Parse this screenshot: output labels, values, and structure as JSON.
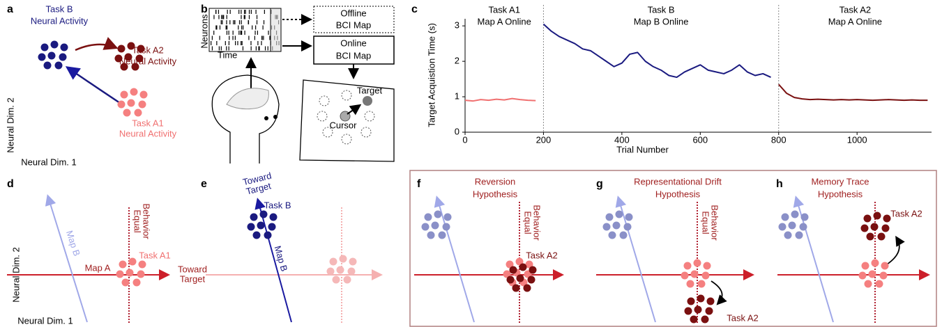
{
  "chart_data": {
    "type": "line",
    "phases": [
      {
        "title": "Task A1",
        "subtitle": "Map A Online"
      },
      {
        "title": "Task B",
        "subtitle": "Map B Online"
      },
      {
        "title": "Task A2",
        "subtitle": "Map A Online"
      }
    ],
    "dividers": [
      200,
      800
    ],
    "ylabel": "Target Acquistion Time (s)",
    "xlabel": "Trial Number",
    "xlim": [
      0,
      1190
    ],
    "xticks": [
      0,
      200,
      400,
      600,
      800,
      1000
    ],
    "ylim": [
      0,
      3.2
    ],
    "yticks": [
      0,
      1,
      2,
      3
    ],
    "x": [
      0,
      20,
      40,
      60,
      80,
      100,
      120,
      140,
      160,
      180,
      200,
      220,
      240,
      260,
      280,
      300,
      320,
      340,
      360,
      380,
      400,
      420,
      440,
      460,
      480,
      500,
      520,
      540,
      560,
      580,
      600,
      620,
      640,
      660,
      680,
      700,
      720,
      740,
      760,
      780,
      800,
      820,
      840,
      860,
      880,
      900,
      920,
      940,
      960,
      980,
      1000,
      1020,
      1040,
      1060,
      1080,
      1100,
      1120,
      1140,
      1160,
      1180
    ],
    "series": [
      {
        "color": "#f07070",
        "values": [
          0.9,
          0.88,
          0.92,
          0.9,
          0.93,
          0.91,
          0.95,
          0.92,
          0.9,
          0.89,
          null,
          null,
          null,
          null,
          null,
          null,
          null,
          null,
          null,
          null,
          null,
          null,
          null,
          null,
          null,
          null,
          null,
          null,
          null,
          null,
          null,
          null,
          null,
          null,
          null,
          null,
          null,
          null,
          null,
          null,
          null,
          null,
          null,
          null,
          null,
          null,
          null,
          null,
          null,
          null,
          null,
          null,
          null,
          null,
          null,
          null,
          null,
          null,
          null,
          null
        ]
      },
      {
        "color": "#1a1a80",
        "values": [
          null,
          null,
          null,
          null,
          null,
          null,
          null,
          null,
          null,
          null,
          3.05,
          2.85,
          2.7,
          2.6,
          2.5,
          2.35,
          2.3,
          2.15,
          2.0,
          1.85,
          1.95,
          2.2,
          2.25,
          2.0,
          1.85,
          1.75,
          1.6,
          1.55,
          1.7,
          1.8,
          1.9,
          1.75,
          1.7,
          1.65,
          1.75,
          1.9,
          1.7,
          1.6,
          1.65,
          1.55,
          null,
          null,
          null,
          null,
          null,
          null,
          null,
          null,
          null,
          null,
          null,
          null,
          null,
          null,
          null,
          null,
          null,
          null,
          null,
          null
        ]
      },
      {
        "color": "#7a1010",
        "values": [
          null,
          null,
          null,
          null,
          null,
          null,
          null,
          null,
          null,
          null,
          null,
          null,
          null,
          null,
          null,
          null,
          null,
          null,
          null,
          null,
          null,
          null,
          null,
          null,
          null,
          null,
          null,
          null,
          null,
          null,
          null,
          null,
          null,
          null,
          null,
          null,
          null,
          null,
          null,
          null,
          1.35,
          1.1,
          0.98,
          0.94,
          0.92,
          0.93,
          0.92,
          0.91,
          0.92,
          0.91,
          0.92,
          0.91,
          0.9,
          0.91,
          0.92,
          0.91,
          0.9,
          0.91,
          0.9,
          0.9
        ]
      }
    ]
  },
  "panel_labels": [
    "a",
    "b",
    "c",
    "d",
    "e",
    "f",
    "g",
    "h"
  ],
  "panel_a": {
    "task_b": [
      "Task B",
      "Neural Activity"
    ],
    "task_a2": [
      "Task A2",
      "Neural Activity"
    ],
    "task_a1": [
      "Task A1",
      "Neural Activity"
    ],
    "axis_y": "Neural Dim. 2",
    "axis_x": "Neural Dim. 1"
  },
  "panel_b": {
    "neurons": "Neurons",
    "time": "Time",
    "offline": [
      "Offline",
      "BCI Map"
    ],
    "online": [
      "Online",
      "BCI Map"
    ],
    "target": "Target",
    "cursor": "Cursor"
  },
  "panel_d": {
    "map_b": "Map B",
    "map_a": "Map A",
    "task": "Task A1",
    "toward": [
      "Toward",
      "Target"
    ],
    "equal": [
      "Equal",
      "Behavior"
    ],
    "axis_y": "Neural Dim. 2",
    "axis_x": "Neural Dim. 1"
  },
  "panel_e": {
    "toward": [
      "Toward",
      "Target"
    ],
    "task": "Task B",
    "map_b": "Map B"
  },
  "panel_f": {
    "title": [
      "Reversion",
      "Hypothesis"
    ],
    "equal": [
      "Equal",
      "Behavior"
    ],
    "task": "Task A2"
  },
  "panel_g": {
    "title": [
      "Representational Drift",
      "Hypothesis"
    ],
    "equal": [
      "Equal",
      "Behavior"
    ],
    "task": "Task A2"
  },
  "panel_h": {
    "title": [
      "Memory Trace",
      "Hypothesis"
    ],
    "task": "Task A2"
  }
}
